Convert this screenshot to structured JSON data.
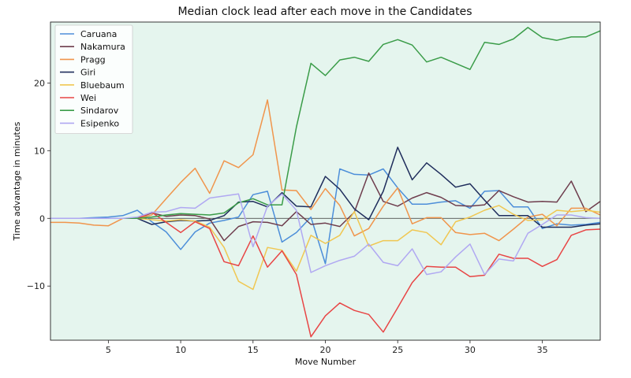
{
  "chart_data": {
    "type": "line",
    "title": "Median clock lead after each move in the Candidates",
    "xlabel": "Move Number",
    "ylabel": "Time advantage in minutes",
    "xlim": [
      1,
      39
    ],
    "ylim": [
      -18,
      29
    ],
    "x_ticks": [
      5,
      10,
      15,
      20,
      25,
      30,
      35
    ],
    "y_ticks": [
      -10,
      0,
      10,
      20
    ],
    "background_color": "#e5f5ee",
    "zero_line": true,
    "legend_position": "top-left",
    "x": [
      1,
      2,
      3,
      4,
      5,
      6,
      7,
      8,
      9,
      10,
      11,
      12,
      13,
      14,
      15,
      16,
      17,
      18,
      19,
      20,
      21,
      22,
      23,
      24,
      25,
      26,
      27,
      28,
      29,
      30,
      31,
      32,
      33,
      34,
      35,
      36,
      37,
      38,
      39
    ],
    "series": [
      {
        "name": "Caruana",
        "color": "#4c8ed9",
        "values": [
          0,
          0,
          0,
          0.1,
          0.2,
          0.4,
          1.2,
          -0.5,
          -2.0,
          -4.6,
          -2.0,
          -0.7,
          -0.3,
          0.2,
          3.5,
          4.0,
          -3.5,
          -2.1,
          0.2,
          -6.7,
          7.3,
          6.5,
          6.4,
          7.3,
          4.5,
          2.1,
          2.1,
          2.4,
          2.6,
          1.5,
          4.0,
          4.1,
          1.7,
          1.7,
          -1.5,
          -0.8,
          -1.0,
          -0.9,
          -0.6
        ]
      },
      {
        "name": "Nakamura",
        "color": "#6e3d4d",
        "values": [
          0,
          0,
          0,
          0,
          0,
          0,
          0,
          0.8,
          0.3,
          0.5,
          0.4,
          -0.1,
          -3.3,
          -1.2,
          -0.5,
          -0.6,
          -1.1,
          1.0,
          -0.9,
          -0.7,
          -1.2,
          0.9,
          6.7,
          2.5,
          1.8,
          3.0,
          3.8,
          3.1,
          1.9,
          1.8,
          2.0,
          4.1,
          3.2,
          2.4,
          2.5,
          2.4,
          5.5,
          1.0,
          2.5
        ]
      },
      {
        "name": "Pragg",
        "color": "#f0954c",
        "values": [
          -0.6,
          -0.6,
          -0.7,
          -1.0,
          -1.1,
          0,
          0,
          0.5,
          2.9,
          5.3,
          7.4,
          3.7,
          8.5,
          7.5,
          9.4,
          17.5,
          4.2,
          4.1,
          1.3,
          4.4,
          1.9,
          -2.6,
          -1.5,
          1.8,
          4.5,
          -0.8,
          0.1,
          0.1,
          -2.1,
          -2.4,
          -2.2,
          -3.3,
          -1.6,
          0.2,
          0.6,
          -1.1,
          1.5,
          1.5,
          0.5
        ]
      },
      {
        "name": "Giri",
        "color": "#1f2d5c",
        "values": [
          0,
          0,
          0,
          0,
          0,
          0,
          0,
          -0.9,
          -0.5,
          -0.3,
          -0.4,
          -0.3,
          0.4,
          2.4,
          2.5,
          1.7,
          3.8,
          1.8,
          1.7,
          6.2,
          4.3,
          1.4,
          -0.2,
          4.0,
          10.5,
          5.7,
          8.2,
          6.5,
          4.6,
          5.1,
          2.7,
          0.4,
          0.4,
          0.4,
          -1.3,
          -1.3,
          -1.3,
          -1.0,
          -0.8
        ]
      },
      {
        "name": "Bluebaum",
        "color": "#f0c752",
        "values": [
          0,
          0,
          0,
          0,
          0,
          0,
          0,
          -0.2,
          -0.4,
          -0.2,
          -0.4,
          -1.3,
          -4.3,
          -9.3,
          -10.5,
          -4.3,
          -4.7,
          -7.8,
          -2.5,
          -3.7,
          -2.5,
          1.0,
          -4.1,
          -3.3,
          -3.3,
          -1.7,
          -2.1,
          -3.9,
          -0.5,
          0.2,
          1.2,
          1.9,
          0.6,
          -0.3,
          -0.2,
          1.2,
          1.0,
          1.2,
          0.9
        ]
      },
      {
        "name": "Wei",
        "color": "#e84545",
        "values": [
          0,
          0,
          0,
          0,
          0,
          0,
          0,
          0.9,
          -0.6,
          -2.1,
          -0.5,
          -1.5,
          -6.4,
          -7.0,
          -2.6,
          -7.2,
          -4.8,
          -8.3,
          -17.5,
          -14.4,
          -12.5,
          -13.6,
          -14.2,
          -16.8,
          -13.2,
          -9.5,
          -7.1,
          -7.2,
          -7.2,
          -8.6,
          -8.4,
          -5.3,
          -5.9,
          -5.9,
          -7.1,
          -6.1,
          -2.5,
          -1.7,
          -1.6
        ]
      },
      {
        "name": "Sindarov",
        "color": "#3a9c48",
        "values": [
          0,
          0,
          0,
          0,
          0,
          0,
          0,
          0.2,
          0.5,
          0.7,
          0.6,
          0.5,
          0.8,
          2.3,
          2.9,
          2.0,
          2.0,
          13.5,
          22.9,
          21.1,
          23.4,
          23.8,
          23.2,
          25.7,
          26.4,
          25.6,
          23.1,
          23.8,
          22.9,
          22.0,
          26.0,
          25.7,
          26.5,
          28.2,
          26.7,
          26.3,
          26.8,
          26.8,
          27.7
        ]
      },
      {
        "name": "Esipenko",
        "color": "#b0a8f2",
        "values": [
          0,
          0,
          0,
          0,
          0,
          0,
          0.2,
          0.9,
          1.0,
          1.6,
          1.5,
          3.0,
          3.3,
          3.6,
          -4.2,
          1.8,
          3.6,
          1.2,
          -8.0,
          -7.0,
          -6.2,
          -5.6,
          -3.8,
          -6.5,
          -7.0,
          -4.5,
          -8.3,
          -7.9,
          -5.7,
          -3.8,
          -8.3,
          -6.0,
          -6.3,
          -2.2,
          -0.9,
          0.5,
          0.5,
          0.1,
          0.0
        ]
      }
    ]
  }
}
